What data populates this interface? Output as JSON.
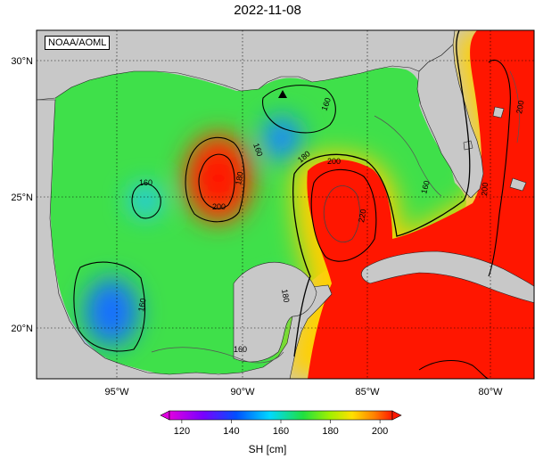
{
  "title": "2022-11-08",
  "credit": "NOAA/AOML",
  "colorbar": {
    "label": "SH [cm]",
    "ticks": [
      "120",
      "140",
      "160",
      "180",
      "200"
    ],
    "min": 115,
    "max": 205
  },
  "map": {
    "lon_labels": [
      "95°W",
      "90°W",
      "85°W",
      "80°W"
    ],
    "lat_labels": [
      "30°N",
      "25°N",
      "20°N"
    ],
    "contour_labels": [
      "160",
      "160",
      "160",
      "160",
      "160",
      "180",
      "180",
      "180",
      "200",
      "200",
      "200",
      "220",
      "160",
      "200"
    ],
    "land_color": "#c8c8c8"
  }
}
